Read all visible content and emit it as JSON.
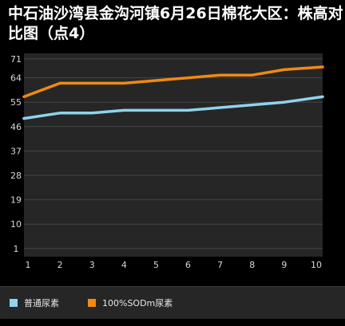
{
  "title": "中石油沙湾县金沟河镇6月26日棉花大区：株高对比图（点4）",
  "colors": {
    "background": "#000000",
    "plot_background": "#262626",
    "grid": "#454545",
    "series_1": "#8fd3ee",
    "series_2": "#f08a12"
  },
  "chart_data": {
    "type": "line",
    "title": "中石油沙湾县金沟河镇6月26日棉花大区：株高对比图（点4）",
    "xlabel": "",
    "ylabel": "",
    "x": [
      1,
      2,
      3,
      4,
      5,
      6,
      7,
      8,
      9,
      10
    ],
    "x_tick_labels": [
      "1",
      "2",
      "3",
      "4",
      "5",
      "6",
      "7",
      "8",
      "9",
      "10"
    ],
    "y_ticks": [
      1,
      10,
      19,
      28,
      37,
      46,
      55,
      64,
      71
    ],
    "y_tick_labels": [
      "1",
      "10",
      "19",
      "28",
      "37",
      "46",
      "55",
      "64",
      "71"
    ],
    "ylim": [
      -2,
      73
    ],
    "grid": true,
    "legend_position": "bottom",
    "series": [
      {
        "name": "普通尿素",
        "color": "#8fd3ee",
        "values": [
          49,
          51,
          51,
          52,
          52,
          52,
          53,
          54,
          55,
          57
        ]
      },
      {
        "name": "100%SODm尿素",
        "color": "#f08a12",
        "values": [
          57,
          62,
          62,
          62,
          63,
          64,
          65,
          65,
          67,
          68
        ]
      }
    ]
  }
}
